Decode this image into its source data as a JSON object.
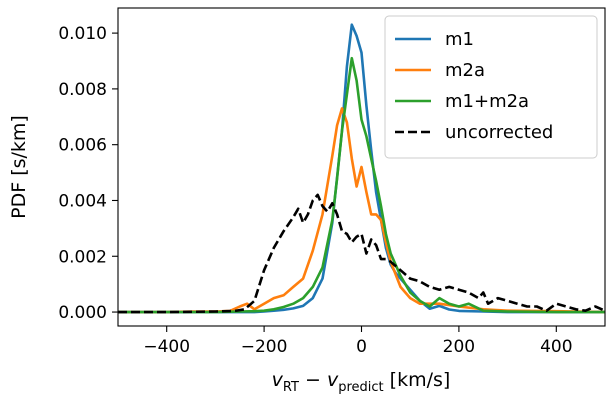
{
  "chart_data": {
    "type": "line",
    "title": "",
    "xlabel": "v_RT − v_predict [km/s]",
    "xlabel_parts": {
      "v1": "v",
      "sub1": "RT",
      "minus": " − ",
      "v2": "v",
      "sub2": "predict",
      "unit": " [km/s]"
    },
    "ylabel": "PDF [s/km]",
    "xlim": [
      -500,
      500
    ],
    "ylim": [
      -0.0005,
      0.0109
    ],
    "x_ticks": [
      -400,
      -200,
      0,
      200,
      400
    ],
    "x_tick_labels": [
      "−400",
      "−200",
      "0",
      "200",
      "400"
    ],
    "y_ticks": [
      0.0,
      0.002,
      0.004,
      0.006,
      0.008,
      0.01
    ],
    "y_tick_labels": [
      "0.000",
      "0.002",
      "0.004",
      "0.006",
      "0.008",
      "0.010"
    ],
    "grid": false,
    "legend_position": "top-right",
    "series": [
      {
        "name": "m1",
        "color": "#1f77b4",
        "dash": "solid",
        "x": [
          -500,
          -400,
          -300,
          -250,
          -220,
          -200,
          -180,
          -160,
          -140,
          -120,
          -100,
          -80,
          -60,
          -40,
          -30,
          -20,
          -10,
          0,
          10,
          20,
          30,
          40,
          50,
          60,
          70,
          80,
          100,
          120,
          140,
          160,
          180,
          200,
          250,
          300,
          350,
          400,
          450,
          500
        ],
        "y": [
          0.0,
          0.0,
          0.0,
          0.0,
          0.0,
          2e-05,
          5e-05,
          8e-05,
          0.00013,
          0.00022,
          0.0005,
          0.0012,
          0.0032,
          0.0065,
          0.0088,
          0.0103,
          0.0099,
          0.0093,
          0.0074,
          0.0058,
          0.0043,
          0.0033,
          0.0023,
          0.0017,
          0.0014,
          0.0012,
          0.0008,
          0.0004,
          0.00012,
          0.00022,
          9e-05,
          4e-05,
          2e-05,
          0.0,
          0.0,
          0.0,
          0.0,
          0.0
        ]
      },
      {
        "name": "m2a",
        "color": "#ff7f0e",
        "dash": "solid",
        "x": [
          -500,
          -400,
          -350,
          -300,
          -270,
          -250,
          -235,
          -220,
          -200,
          -180,
          -160,
          -140,
          -120,
          -100,
          -80,
          -60,
          -50,
          -40,
          -30,
          -20,
          -10,
          0,
          10,
          20,
          30,
          40,
          50,
          60,
          80,
          100,
          120,
          140,
          160,
          200,
          250,
          300,
          400,
          500
        ],
        "y": [
          0.0,
          0.0,
          2e-05,
          2e-05,
          4e-05,
          0.0002,
          0.0003,
          0.0001,
          0.0003,
          0.0005,
          0.0006,
          0.0009,
          0.0012,
          0.0022,
          0.0035,
          0.0056,
          0.0067,
          0.0073,
          0.0068,
          0.0055,
          0.0045,
          0.0052,
          0.0043,
          0.0035,
          0.0035,
          0.0033,
          0.0025,
          0.0018,
          0.0009,
          0.0005,
          0.0003,
          0.0003,
          0.0003,
          0.0002,
          0.0001,
          5e-05,
          3e-05,
          0.0
        ]
      },
      {
        "name": "m1+m2a",
        "color": "#2ca02c",
        "dash": "solid",
        "x": [
          -500,
          -400,
          -300,
          -250,
          -220,
          -200,
          -180,
          -160,
          -140,
          -120,
          -100,
          -80,
          -60,
          -50,
          -40,
          -30,
          -20,
          -10,
          0,
          10,
          20,
          30,
          40,
          50,
          60,
          80,
          100,
          120,
          140,
          160,
          180,
          200,
          220,
          250,
          300,
          400,
          500
        ],
        "y": [
          0.0,
          0.0,
          0.0,
          2e-05,
          3e-05,
          5e-05,
          0.0001,
          0.00018,
          0.0003,
          0.0005,
          0.0009,
          0.0016,
          0.0033,
          0.0048,
          0.0065,
          0.0078,
          0.0091,
          0.0083,
          0.0069,
          0.0063,
          0.0055,
          0.0047,
          0.0038,
          0.0028,
          0.0021,
          0.0013,
          0.0007,
          0.0004,
          0.0002,
          0.0005,
          0.0003,
          0.0002,
          0.0003,
          5e-05,
          2e-05,
          0.0,
          0.0
        ]
      },
      {
        "name": "uncorrected",
        "color": "#000000",
        "dash": "dashed",
        "x": [
          -500,
          -400,
          -300,
          -260,
          -240,
          -220,
          -200,
          -180,
          -160,
          -140,
          -130,
          -120,
          -110,
          -100,
          -90,
          -80,
          -70,
          -60,
          -50,
          -40,
          -30,
          -20,
          -10,
          0,
          10,
          20,
          30,
          40,
          50,
          60,
          80,
          100,
          120,
          140,
          160,
          180,
          200,
          220,
          240,
          250,
          260,
          280,
          300,
          320,
          340,
          360,
          380,
          400,
          420,
          440,
          460,
          480,
          500
        ],
        "y": [
          0.0,
          0.0,
          2e-05,
          4e-05,
          0.0001,
          0.0004,
          0.0015,
          0.0023,
          0.0029,
          0.0034,
          0.0037,
          0.0032,
          0.0035,
          0.004,
          0.0042,
          0.0038,
          0.0036,
          0.0039,
          0.0035,
          0.0029,
          0.0028,
          0.0025,
          0.0027,
          0.0028,
          0.0021,
          0.0026,
          0.0024,
          0.0019,
          0.0019,
          0.0018,
          0.0015,
          0.0012,
          0.0011,
          0.0009,
          0.0008,
          0.0009,
          0.0008,
          0.0007,
          0.0005,
          0.0007,
          0.0003,
          0.0005,
          0.0004,
          0.0003,
          0.0002,
          0.0002,
          5e-05,
          0.0003,
          0.0002,
          0.0001,
          5e-05,
          0.0002,
          5e-05
        ]
      }
    ]
  }
}
